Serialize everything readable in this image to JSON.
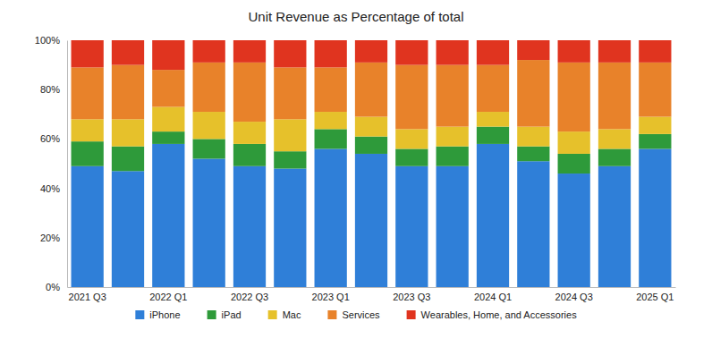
{
  "chart_data": {
    "type": "bar",
    "stacked": true,
    "title": "Unit Revenue as Percentage of total",
    "categories": [
      "2021 Q3",
      null,
      "2022 Q1",
      null,
      "2022 Q3",
      null,
      "2023 Q1",
      null,
      "2023 Q3",
      null,
      "2024 Q1",
      null,
      "2024 Q3",
      null,
      "2025 Q1"
    ],
    "series": [
      {
        "name": "iPhone",
        "color": "#2f7fd8",
        "values": [
          49,
          47,
          58,
          52,
          49,
          48,
          56,
          54,
          49,
          49,
          58,
          51,
          46,
          49,
          56
        ]
      },
      {
        "name": "iPad",
        "color": "#2e9a3a",
        "values": [
          10,
          10,
          5,
          8,
          9,
          7,
          8,
          7,
          7,
          8,
          7,
          6,
          8,
          7,
          6
        ]
      },
      {
        "name": "Mac",
        "color": "#e6c12b",
        "values": [
          9,
          11,
          10,
          11,
          9,
          13,
          7,
          8,
          8,
          8,
          6,
          8,
          9,
          8,
          7
        ]
      },
      {
        "name": "Services",
        "color": "#e8822a",
        "values": [
          21,
          22,
          15,
          20,
          24,
          21,
          18,
          22,
          26,
          25,
          19,
          27,
          28,
          27,
          22
        ]
      },
      {
        "name": "Wearables, Home, and Accessories",
        "color": "#e0341f",
        "values": [
          11,
          10,
          12,
          9,
          9,
          11,
          11,
          9,
          10,
          10,
          10,
          8,
          9,
          9,
          9
        ]
      }
    ],
    "ylim": [
      0,
      100
    ],
    "yticks": [
      {
        "value": 0,
        "label": "0%"
      },
      {
        "value": 20,
        "label": "20%"
      },
      {
        "value": 40,
        "label": "40%"
      },
      {
        "value": 60,
        "label": "60%"
      },
      {
        "value": 80,
        "label": "80%"
      },
      {
        "value": 100,
        "label": "100%"
      }
    ],
    "legend": "bottom"
  }
}
